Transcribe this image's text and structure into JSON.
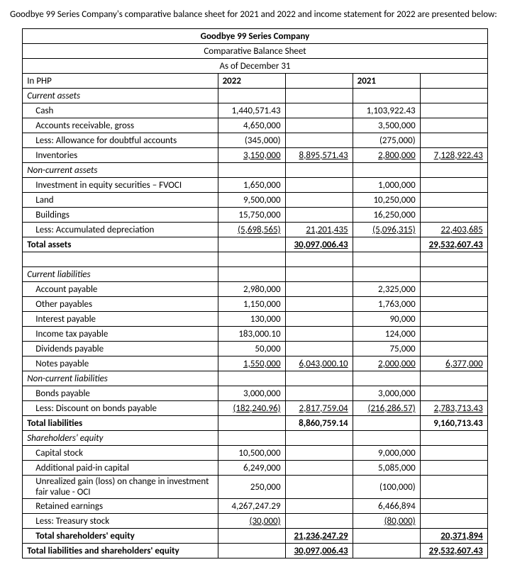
{
  "intro": "Goodbye 99 Series Company's comparative balance sheet for 2021 and 2022 and income statement for 2022 are presented below:",
  "title1": "Goodbye 99 Series Company",
  "title2": "Comparative Balance Sheet",
  "title3": "As of December 31",
  "hdr_unit": "In PHP",
  "hdr_2022": "2022",
  "hdr_2021": "2021",
  "s_ca": "Current assets",
  "r_cash": "Cash",
  "r_ar": "Accounts receivable, gross",
  "r_allow": "Less: Allowance for doubtful accounts",
  "r_inv": "Inventories",
  "s_nca": "Non-current assets",
  "r_fvoci": "Investment in equity securities – FVOCI",
  "r_land": "Land",
  "r_bldg": "Buildings",
  "r_dep": "Less: Accumulated depreciation",
  "r_ta": "Total assets",
  "s_cl": "Current liabilities",
  "r_ap": "Account payable",
  "r_op": "Other payables",
  "r_ip": "Interest payable",
  "r_itp": "Income tax payable",
  "r_dp": "Dividends payable",
  "r_np": "Notes payable",
  "s_ncl": "Non-current liabilities",
  "r_bp": "Bonds payable",
  "r_disc": "Less: Discount on bonds payable",
  "r_tl": "Total liabilities",
  "s_se": "Shareholders' equity",
  "r_cs": "Capital stock",
  "r_apic": "Additional paid-in capital",
  "r_oci": "Unrealized gain (loss) on change in investment fair value - OCI",
  "r_re": "Retained earnings",
  "r_ts": "Less: Treasury stock",
  "r_tse": "Total shareholders' equity",
  "r_tlse": "Total liabilities and shareholders' equity",
  "v": {
    "cash22": "1,440,571.43",
    "cash21": "1,103,922.43",
    "ar22": "4,650,000",
    "ar21": "3,500,000",
    "allow22": "(345,000)",
    "allow21": "(275,000)",
    "inv22": "3,150,000",
    "inv21": "2,800,000",
    "ca22sub": "8,895,571.43",
    "ca21sub": "7,128,922.43",
    "fvoci22": "1,650,000",
    "fvoci21": "1,000,000",
    "land22": "9,500,000",
    "land21": "10,250,000",
    "bldg22": "15,750,000",
    "bldg21": "16,250,000",
    "dep22": "(5,698,565)",
    "dep21": "(5,096,315)",
    "nca22sub": "21,201,435",
    "nca21sub": "22,403,685",
    "ta22": "30,097,006.43",
    "ta21": "29,532,607.43",
    "ap22": "2,980,000",
    "ap21": "2,325,000",
    "op22": "1,150,000",
    "op21": "1,763,000",
    "ip22": "130,000",
    "ip21": "90,000",
    "itp22": "183,000.10",
    "itp21": "124,000",
    "dp22": "50,000",
    "dp21": "75,000",
    "np22": "1,550,000",
    "np21": "2,000,000",
    "cl22sub": "6,043,000.10",
    "cl21sub": "6,377,000",
    "bp22": "3,000,000",
    "bp21": "3,000,000",
    "disc22": "(182,240.96)",
    "disc21": "(216,286.57)",
    "ncl22sub": "2,817,759.04",
    "ncl21sub": "2,783,713.43",
    "tl22": "8,860,759.14",
    "tl21": "9,160,713.43",
    "cs22": "10,500,000",
    "cs21": "9,000,000",
    "apic22": "6,249,000",
    "apic21": "5,085,000",
    "oci22": "250,000",
    "oci21": "(100,000)",
    "re22": "4,267,247.29",
    "re21": "6,466,894",
    "ts22": "(30,000)",
    "ts21": "(80,000)",
    "tse22": "21,236,247.29",
    "tse21": "20,371,894",
    "tlse22": "30,097,006.43",
    "tlse21": "29,532,607.43"
  }
}
